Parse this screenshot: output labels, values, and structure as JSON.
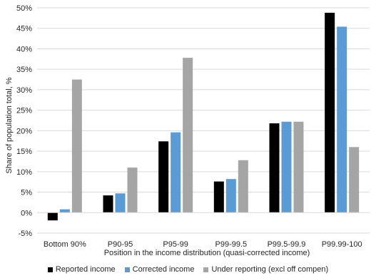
{
  "chart_data": {
    "type": "bar",
    "xlabel": "Position in the income distribution (quasi-corrected income)",
    "ylabel": "Share of population total, %",
    "ylim": [
      -5,
      50
    ],
    "yticks": [
      -5,
      0,
      5,
      10,
      15,
      20,
      25,
      30,
      35,
      40,
      45,
      50
    ],
    "ytick_labels": [
      "-5%",
      "0%",
      "5%",
      "10%",
      "15%",
      "20%",
      "25%",
      "30%",
      "35%",
      "40%",
      "45%",
      "50%"
    ],
    "grid": true,
    "legend_position": "bottom",
    "categories": [
      "Bottom 90%",
      "P90-95",
      "P95-99",
      "P99-99.5",
      "P99.5-99.9",
      "P99.99-100"
    ],
    "series": [
      {
        "name": "Reported income",
        "color": "#000000",
        "values": [
          -1.9,
          4.2,
          17.4,
          7.6,
          21.8,
          48.8
        ]
      },
      {
        "name": "Corrected income",
        "color": "#5b9bd5",
        "values": [
          0.8,
          4.7,
          19.6,
          8.2,
          22.2,
          45.4
        ]
      },
      {
        "name": "Under reporting (excl off compen)",
        "color": "#a5a5a5",
        "values": [
          32.5,
          11.0,
          37.8,
          12.8,
          22.2,
          16.0
        ]
      }
    ]
  }
}
